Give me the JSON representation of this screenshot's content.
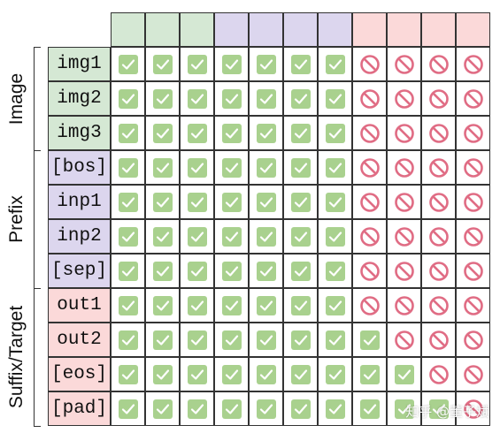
{
  "groups": [
    {
      "label": "Image",
      "color": "#d5e8d4",
      "rows": [
        "img1",
        "img2",
        "img3"
      ]
    },
    {
      "label": "Prefix",
      "color": "#dcd6ee",
      "rows": [
        "[bos]",
        "inp1",
        "inp2",
        "[sep]"
      ]
    },
    {
      "label": "Suffix/Target",
      "color": "#fbd9d9",
      "rows": [
        "out1",
        "out2",
        "[eos]",
        "[pad]"
      ]
    }
  ],
  "column_colors": [
    "#d5e8d4",
    "#d5e8d4",
    "#d5e8d4",
    "#dcd6ee",
    "#dcd6ee",
    "#dcd6ee",
    "#dcd6ee",
    "#fbd9d9",
    "#fbd9d9",
    "#fbd9d9",
    "#fbd9d9"
  ],
  "mask": [
    [
      1,
      1,
      1,
      1,
      1,
      1,
      1,
      0,
      0,
      0,
      0
    ],
    [
      1,
      1,
      1,
      1,
      1,
      1,
      1,
      0,
      0,
      0,
      0
    ],
    [
      1,
      1,
      1,
      1,
      1,
      1,
      1,
      0,
      0,
      0,
      0
    ],
    [
      1,
      1,
      1,
      1,
      1,
      1,
      1,
      0,
      0,
      0,
      0
    ],
    [
      1,
      1,
      1,
      1,
      1,
      1,
      1,
      0,
      0,
      0,
      0
    ],
    [
      1,
      1,
      1,
      1,
      1,
      1,
      1,
      0,
      0,
      0,
      0
    ],
    [
      1,
      1,
      1,
      1,
      1,
      1,
      1,
      0,
      0,
      0,
      0
    ],
    [
      1,
      1,
      1,
      1,
      1,
      1,
      1,
      0,
      0,
      0,
      0
    ],
    [
      1,
      1,
      1,
      1,
      1,
      1,
      1,
      1,
      0,
      0,
      0
    ],
    [
      1,
      1,
      1,
      1,
      1,
      1,
      1,
      1,
      1,
      0,
      0
    ],
    [
      1,
      1,
      1,
      1,
      1,
      1,
      1,
      1,
      1,
      1,
      0
    ]
  ],
  "icons": {
    "allowed": "check-icon",
    "blocked": "no-entry-icon"
  },
  "colors": {
    "check_bg": "#a9d18e",
    "check_mark": "#ffffff",
    "block": "#e06c84"
  },
  "watermark": "知乎 @董子斌"
}
